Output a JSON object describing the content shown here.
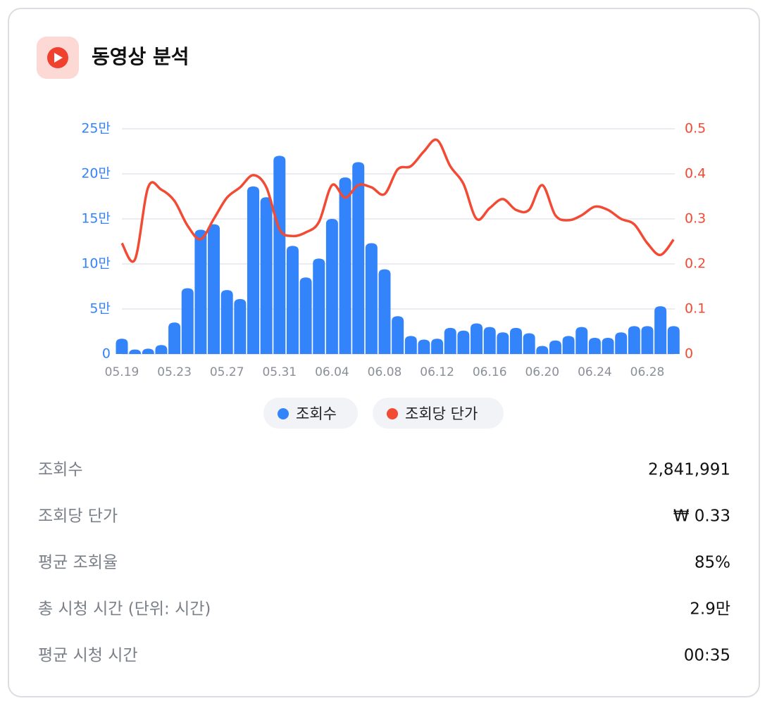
{
  "header": {
    "title": "동영상 분석"
  },
  "chart_data": {
    "type": "bar",
    "categories": [
      "05.19",
      null,
      null,
      null,
      "05.23",
      null,
      null,
      null,
      "05.27",
      null,
      null,
      null,
      "05.31",
      null,
      null,
      null,
      "06.04",
      null,
      null,
      null,
      "06.08",
      null,
      null,
      null,
      "06.12",
      null,
      null,
      null,
      "06.16",
      null,
      null,
      null,
      "06.20",
      null,
      null,
      null,
      "06.24",
      null,
      null,
      null,
      "06.28",
      null,
      null
    ],
    "series": [
      {
        "name": "조회수",
        "color": "#3384fa",
        "values": [
          17000,
          5000,
          6000,
          10000,
          35000,
          73000,
          138000,
          144000,
          71000,
          61000,
          186000,
          174000,
          220000,
          120000,
          85000,
          106000,
          150000,
          196000,
          213000,
          123000,
          94000,
          42000,
          20000,
          16000,
          17000,
          29000,
          26000,
          34000,
          30000,
          24000,
          29000,
          23000,
          9000,
          15000,
          20000,
          30000,
          18000,
          18000,
          24000,
          31000,
          31000,
          53000,
          31000
        ]
      },
      {
        "name": "조회당 단가",
        "color": "#f24a33",
        "axis": "y2",
        "values": [
          0.246,
          0.21,
          0.37,
          0.365,
          0.34,
          0.285,
          0.255,
          0.3,
          0.347,
          0.37,
          0.397,
          0.37,
          0.277,
          0.262,
          0.27,
          0.293,
          0.375,
          0.347,
          0.375,
          0.37,
          0.355,
          0.41,
          0.417,
          0.45,
          0.475,
          0.417,
          0.378,
          0.3,
          0.324,
          0.344,
          0.32,
          0.32,
          0.375,
          0.308,
          0.297,
          0.308,
          0.327,
          0.32,
          0.3,
          0.288,
          0.246,
          0.22,
          0.254
        ]
      }
    ],
    "ylim": [
      0,
      250000
    ],
    "yticks": [
      {
        "value": 0,
        "label": "0"
      },
      {
        "value": 50000,
        "label": "5만"
      },
      {
        "value": 100000,
        "label": "10만"
      },
      {
        "value": 150000,
        "label": "15만"
      },
      {
        "value": 200000,
        "label": "20만"
      },
      {
        "value": 250000,
        "label": "25만"
      }
    ],
    "y2lim": [
      0,
      0.5
    ],
    "y2ticks": [
      0,
      0.1,
      0.2,
      0.3,
      0.4,
      0.5
    ],
    "grid": true
  },
  "stats": {
    "rows": [
      [
        "조회수",
        "2,841,991"
      ],
      [
        "조회당 단가",
        "₩ 0.33"
      ],
      [
        "평균 조회율",
        "85%"
      ],
      [
        "총 시청 시간 (단위: 시간)",
        "2.9만"
      ],
      [
        "평균 시청 시간",
        "00:35"
      ]
    ]
  }
}
